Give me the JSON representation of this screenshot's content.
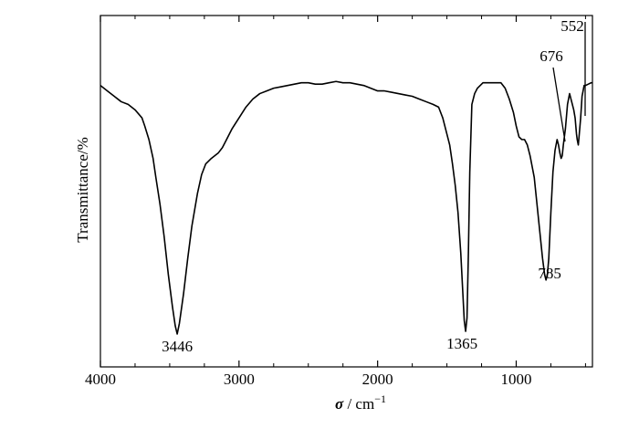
{
  "chart_data": {
    "type": "line",
    "title": "",
    "xlabel": {
      "symbol": "σ",
      "unit": " / cm",
      "exponent": "−1"
    },
    "ylabel": "Transmittance/%",
    "xlim": [
      4000,
      450
    ],
    "ylim": [
      0,
      100
    ],
    "x_reversed": true,
    "x_ticks": [
      4000,
      3000,
      2000,
      1000
    ],
    "x_tick_labels": [
      "4000",
      "3000",
      "2000",
      "1000"
    ],
    "y_ticks_shown": false,
    "grid": false,
    "legend": "none",
    "line_color": "#000000",
    "series": [
      {
        "x": [
          4000,
          3950,
          3900,
          3850,
          3800,
          3750,
          3700,
          3680,
          3650,
          3620,
          3600,
          3570,
          3540,
          3510,
          3480,
          3460,
          3446,
          3430,
          3400,
          3370,
          3340,
          3300,
          3270,
          3240,
          3200,
          3150,
          3120,
          3100,
          3050,
          3000,
          2950,
          2900,
          2850,
          2800,
          2750,
          2700,
          2650,
          2600,
          2550,
          2500,
          2450,
          2400,
          2350,
          2300,
          2250,
          2200,
          2150,
          2100,
          2050,
          2000,
          1950,
          1900,
          1850,
          1800,
          1750,
          1700,
          1650,
          1600,
          1560,
          1530,
          1500,
          1480,
          1460,
          1440,
          1420,
          1400,
          1385,
          1375,
          1365,
          1355,
          1345,
          1335,
          1320,
          1300,
          1280,
          1260,
          1240,
          1200,
          1170,
          1140,
          1110,
          1080,
          1050,
          1020,
          1000,
          980,
          960,
          940,
          920,
          900,
          870,
          850,
          830,
          810,
          795,
          785,
          775,
          765,
          750,
          735,
          720,
          705,
          695,
          685,
          676,
          668,
          660,
          645,
          630,
          615,
          600,
          585,
          575,
          565,
          560,
          552,
          545,
          535,
          525,
          510,
          500,
          480,
          460,
          450
        ],
        "y": [
          92,
          90,
          88,
          86,
          85,
          83,
          80,
          77,
          72,
          65,
          58,
          48,
          36,
          22,
          10,
          3,
          0,
          4,
          15,
          28,
          40,
          52,
          59,
          63,
          65,
          67,
          69,
          71,
          76,
          80,
          84,
          87,
          89,
          90,
          91,
          91.5,
          92,
          92.5,
          93,
          93,
          92.5,
          92.5,
          93,
          93.5,
          93,
          93,
          92.5,
          92,
          91,
          90,
          90,
          89.5,
          89,
          88.5,
          88,
          87,
          86,
          85,
          84,
          80,
          74,
          70,
          63,
          55,
          45,
          30,
          15,
          5,
          1,
          6,
          30,
          60,
          85,
          89,
          91,
          92,
          93,
          93,
          93,
          93,
          93,
          91,
          87,
          82,
          77,
          73,
          72,
          72,
          70,
          66,
          58,
          48,
          38,
          28,
          22,
          20,
          22,
          28,
          45,
          60,
          68,
          72,
          70,
          67,
          65,
          66,
          70,
          76,
          85,
          89,
          86,
          83,
          80,
          74,
          72,
          70,
          74,
          80,
          88,
          92,
          92,
          92.5,
          93,
          93
        ]
      }
    ],
    "annotations": [
      {
        "text": "3446",
        "x": 3446
      },
      {
        "text": "1365",
        "x": 1365
      },
      {
        "text": "785",
        "x": 785
      },
      {
        "text": "676",
        "x": 676
      },
      {
        "text": "552",
        "x": 552
      }
    ]
  }
}
